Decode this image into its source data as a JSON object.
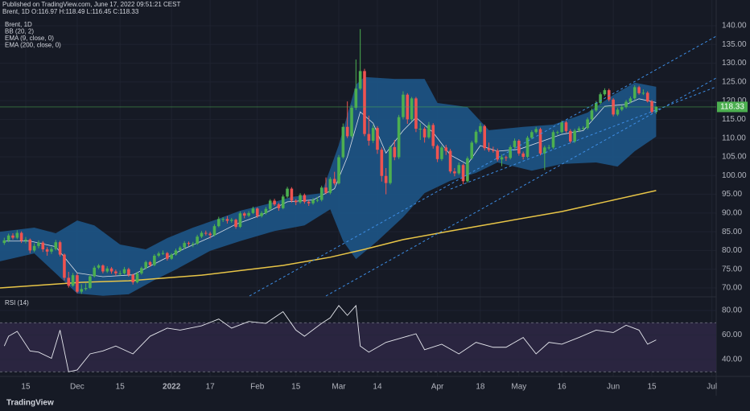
{
  "header": {
    "published": "Published on TradingView.com, June 17, 2022 09:51:21 CEST",
    "symbol_line": "Brent, 1D  O:116.97 H:118.49 L:116.45 C:118.33",
    "logo": "TradingView"
  },
  "chart_data": {
    "type": "candlestick",
    "legend": [
      "Brent, 1D",
      "BB (20, 2)",
      "EMA (9, close, 0)",
      "EMA (200, close, 0)"
    ],
    "up_color": "#4caf50",
    "down_color": "#ef5350",
    "grid": true,
    "ylim": [
      67.85,
      142.15
    ],
    "yticks": [
      {
        "value": 70,
        "label": "70.00"
      },
      {
        "value": 75,
        "label": "75.00"
      },
      {
        "value": 80,
        "label": "80.00"
      },
      {
        "value": 85,
        "label": "85.00"
      },
      {
        "value": 90,
        "label": "90.00"
      },
      {
        "value": 95,
        "label": "95.00"
      },
      {
        "value": 100,
        "label": "100.00"
      },
      {
        "value": 105,
        "label": "105.00"
      },
      {
        "value": 110,
        "label": "110.00"
      },
      {
        "value": 115,
        "label": "115.00"
      },
      {
        "value": 120,
        "label": "120.00"
      },
      {
        "value": 125,
        "label": "125.00"
      },
      {
        "value": 130,
        "label": "130.00"
      },
      {
        "value": 135,
        "label": "135.00"
      },
      {
        "value": 140,
        "label": "140.00"
      }
    ],
    "xlim": [
      -1,
      166
    ],
    "xticks": [
      {
        "value": 5,
        "label": "15"
      },
      {
        "value": 17,
        "label": "Dec"
      },
      {
        "value": 27,
        "label": "15"
      },
      {
        "value": 39,
        "label": "2022"
      },
      {
        "value": 48,
        "label": "17"
      },
      {
        "value": 59,
        "label": "Feb"
      },
      {
        "value": 68,
        "label": "15"
      },
      {
        "value": 78,
        "label": "Mar"
      },
      {
        "value": 87,
        "label": "14"
      },
      {
        "value": 101,
        "label": "Apr"
      },
      {
        "value": 111,
        "label": "18"
      },
      {
        "value": 120,
        "label": "May"
      },
      {
        "value": 130,
        "label": "16"
      },
      {
        "value": 142,
        "label": "Jun"
      },
      {
        "value": 151,
        "label": "15"
      },
      {
        "value": 165,
        "label": "Jul"
      }
    ],
    "candles": [
      [
        82.0,
        83.4,
        81.5,
        82.7
      ],
      [
        82.7,
        84.5,
        82.2,
        84.0
      ],
      [
        84.0,
        84.6,
        82.9,
        83.4
      ],
      [
        83.4,
        85.4,
        83.0,
        84.7
      ],
      [
        84.7,
        85.1,
        82.0,
        82.6
      ],
      [
        82.6,
        83.6,
        81.9,
        82.9
      ],
      [
        82.9,
        83.2,
        79.3,
        80.0
      ],
      [
        80.0,
        81.9,
        79.6,
        81.2
      ],
      [
        81.2,
        82.7,
        80.6,
        82.1
      ],
      [
        82.1,
        82.5,
        79.6,
        80.3
      ],
      [
        80.3,
        80.9,
        78.6,
        79.7
      ],
      [
        79.7,
        81.0,
        79.1,
        80.4
      ],
      [
        80.4,
        82.8,
        80.0,
        82.2
      ],
      [
        82.2,
        82.6,
        78.4,
        78.9
      ],
      [
        78.9,
        79.2,
        72.0,
        72.7
      ],
      [
        72.7,
        74.3,
        70.1,
        70.6
      ],
      [
        70.6,
        74.0,
        70.3,
        73.4
      ],
      [
        73.4,
        73.9,
        68.6,
        69.0
      ],
      [
        69.0,
        71.0,
        68.4,
        69.7
      ],
      [
        69.7,
        71.2,
        69.3,
        70.0
      ],
      [
        70.0,
        73.6,
        69.7,
        73.1
      ],
      [
        73.1,
        75.9,
        72.8,
        75.4
      ],
      [
        75.4,
        76.4,
        75.0,
        76.0
      ],
      [
        76.0,
        76.3,
        73.9,
        74.4
      ],
      [
        74.4,
        75.8,
        74.0,
        75.2
      ],
      [
        75.2,
        75.6,
        73.8,
        74.4
      ],
      [
        74.4,
        74.9,
        73.2,
        73.9
      ],
      [
        73.9,
        74.6,
        73.3,
        73.9
      ],
      [
        73.9,
        75.6,
        73.6,
        75.0
      ],
      [
        75.0,
        75.4,
        73.0,
        73.5
      ],
      [
        73.5,
        73.8,
        70.9,
        71.5
      ],
      [
        71.5,
        74.3,
        71.2,
        73.9
      ],
      [
        73.9,
        75.7,
        73.5,
        75.3
      ],
      [
        75.3,
        77.3,
        75.0,
        76.9
      ],
      [
        76.9,
        77.2,
        75.6,
        76.1
      ],
      [
        76.1,
        79.0,
        75.8,
        78.6
      ],
      [
        78.6,
        79.7,
        78.2,
        79.2
      ],
      [
        79.2,
        80.0,
        78.8,
        79.3
      ],
      [
        79.3,
        79.6,
        77.3,
        77.8
      ],
      [
        77.8,
        79.3,
        77.5,
        78.9
      ],
      [
        78.9,
        80.5,
        78.6,
        80.0
      ],
      [
        80.0,
        81.2,
        79.6,
        80.8
      ],
      [
        80.8,
        82.5,
        80.4,
        82.0
      ],
      [
        82.0,
        82.4,
        81.2,
        81.8
      ],
      [
        81.8,
        82.3,
        80.9,
        81.8
      ],
      [
        81.8,
        84.2,
        81.5,
        83.7
      ],
      [
        83.7,
        85.2,
        83.3,
        84.7
      ],
      [
        84.7,
        85.3,
        84.0,
        84.5
      ],
      [
        84.5,
        85.0,
        83.2,
        84.1
      ],
      [
        84.1,
        87.0,
        83.8,
        86.5
      ],
      [
        86.5,
        89.0,
        86.2,
        88.4
      ],
      [
        88.4,
        88.9,
        87.6,
        88.4
      ],
      [
        88.4,
        89.2,
        87.2,
        87.9
      ],
      [
        87.9,
        88.7,
        87.4,
        88.2
      ],
      [
        88.2,
        88.5,
        85.8,
        86.3
      ],
      [
        86.3,
        90.4,
        86.0,
        89.9
      ],
      [
        89.9,
        90.3,
        88.6,
        89.3
      ],
      [
        89.3,
        90.5,
        88.9,
        90.0
      ],
      [
        90.0,
        91.7,
        89.7,
        91.2
      ],
      [
        91.2,
        91.5,
        88.7,
        89.2
      ],
      [
        89.2,
        90.5,
        88.8,
        90.0
      ],
      [
        90.0,
        91.6,
        89.6,
        91.1
      ],
      [
        91.1,
        93.7,
        90.7,
        93.3
      ],
      [
        93.3,
        93.8,
        91.9,
        92.3
      ],
      [
        92.3,
        92.7,
        90.6,
        91.3
      ],
      [
        91.3,
        94.9,
        91.0,
        94.4
      ],
      [
        94.4,
        97.0,
        94.0,
        96.5
      ],
      [
        96.5,
        96.9,
        92.8,
        93.3
      ],
      [
        93.3,
        93.7,
        92.1,
        92.9
      ],
      [
        92.9,
        95.3,
        92.5,
        94.8
      ],
      [
        94.8,
        95.2,
        92.5,
        93.0
      ],
      [
        93.0,
        93.4,
        91.9,
        92.6
      ],
      [
        92.6,
        94.0,
        92.2,
        93.5
      ],
      [
        93.5,
        94.3,
        92.9,
        93.5
      ],
      [
        93.5,
        97.3,
        93.1,
        96.8
      ],
      [
        96.8,
        99.5,
        95.0,
        95.4
      ],
      [
        95.4,
        99.6,
        95.0,
        99.1
      ],
      [
        99.1,
        101.0,
        97.4,
        97.9
      ],
      [
        97.9,
        105.5,
        97.6,
        104.9
      ],
      [
        104.9,
        113.9,
        104.5,
        113.0
      ],
      [
        113.0,
        119.8,
        110.0,
        110.5
      ],
      [
        110.5,
        118.8,
        110.0,
        118.1
      ],
      [
        118.1,
        131.0,
        117.5,
        123.2
      ],
      [
        123.2,
        139.1,
        122.8,
        127.9
      ],
      [
        127.9,
        128.5,
        110.5,
        111.1
      ],
      [
        111.1,
        116.0,
        108.0,
        109.3
      ],
      [
        109.3,
        113.5,
        108.7,
        112.7
      ],
      [
        112.7,
        113.2,
        105.8,
        106.9
      ],
      [
        106.9,
        107.5,
        98.4,
        99.9
      ],
      [
        99.9,
        102.0,
        95.0,
        98.0
      ],
      [
        98.0,
        108.0,
        97.6,
        107.6
      ],
      [
        107.6,
        109.5,
        104.1,
        104.9
      ],
      [
        104.9,
        116.2,
        104.4,
        115.6
      ],
      [
        115.6,
        122.5,
        115.0,
        121.6
      ],
      [
        121.6,
        122.0,
        113.8,
        115.0
      ],
      [
        115.0,
        121.0,
        114.5,
        120.6
      ],
      [
        120.6,
        121.0,
        111.6,
        112.5
      ],
      [
        112.5,
        114.0,
        109.5,
        112.5
      ],
      [
        112.5,
        113.0,
        108.8,
        110.2
      ],
      [
        110.2,
        114.3,
        109.8,
        113.5
      ],
      [
        113.5,
        114.0,
        107.2,
        107.9
      ],
      [
        107.9,
        108.3,
        103.6,
        104.4
      ],
      [
        104.4,
        108.0,
        103.9,
        107.5
      ],
      [
        107.5,
        108.2,
        105.5,
        106.6
      ],
      [
        106.6,
        107.1,
        100.6,
        101.1
      ],
      [
        101.1,
        102.0,
        99.8,
        100.6
      ],
      [
        100.6,
        103.5,
        100.2,
        102.8
      ],
      [
        102.8,
        103.2,
        97.7,
        98.5
      ],
      [
        98.5,
        105.1,
        98.1,
        104.6
      ],
      [
        104.6,
        109.3,
        104.2,
        108.8
      ],
      [
        108.8,
        112.2,
        108.4,
        111.7
      ],
      [
        111.7,
        114.0,
        111.2,
        113.2
      ],
      [
        113.2,
        113.6,
        106.7,
        107.3
      ],
      [
        107.3,
        108.8,
        106.3,
        106.8
      ],
      [
        106.8,
        107.7,
        106.1,
        106.7
      ],
      [
        106.7,
        107.2,
        103.8,
        104.3
      ],
      [
        104.3,
        105.6,
        102.5,
        104.9
      ],
      [
        104.9,
        105.3,
        103.9,
        104.7
      ],
      [
        104.7,
        108.1,
        104.3,
        107.6
      ],
      [
        107.6,
        109.9,
        107.2,
        109.3
      ],
      [
        109.3,
        109.7,
        105.3,
        105.9
      ],
      [
        105.9,
        106.4,
        104.3,
        105.0
      ],
      [
        105.0,
        110.6,
        104.6,
        110.1
      ],
      [
        110.1,
        112.1,
        109.7,
        111.6
      ],
      [
        111.6,
        113.0,
        111.2,
        112.4
      ],
      [
        112.4,
        112.8,
        105.4,
        105.9
      ],
      [
        105.9,
        108.0,
        101.5,
        107.5
      ],
      [
        107.5,
        108.2,
        106.9,
        107.5
      ],
      [
        107.5,
        112.1,
        107.1,
        111.6
      ],
      [
        111.6,
        112.0,
        110.9,
        111.6
      ],
      [
        111.6,
        114.7,
        111.2,
        114.2
      ],
      [
        114.2,
        114.6,
        111.4,
        111.9
      ],
      [
        111.9,
        112.4,
        108.6,
        109.1
      ],
      [
        109.1,
        112.5,
        108.7,
        112.0
      ],
      [
        112.0,
        113.1,
        111.6,
        112.6
      ],
      [
        112.6,
        113.2,
        112.1,
        112.7
      ],
      [
        112.7,
        115.5,
        112.3,
        115.0
      ],
      [
        115.0,
        117.9,
        114.6,
        117.4
      ],
      [
        117.4,
        119.9,
        117.0,
        119.4
      ],
      [
        119.4,
        122.2,
        119.0,
        121.7
      ],
      [
        121.7,
        123.3,
        121.3,
        122.8
      ],
      [
        122.8,
        123.2,
        119.8,
        120.3
      ],
      [
        120.3,
        120.7,
        115.8,
        116.3
      ],
      [
        116.3,
        118.1,
        115.9,
        117.6
      ],
      [
        117.6,
        118.8,
        117.2,
        118.3
      ],
      [
        118.3,
        120.2,
        117.9,
        119.7
      ],
      [
        119.7,
        121.1,
        119.3,
        120.6
      ],
      [
        120.6,
        124.1,
        120.2,
        123.6
      ],
      [
        123.6,
        124.0,
        121.6,
        122.0
      ],
      [
        122.0,
        123.0,
        121.5,
        122.1
      ],
      [
        122.1,
        122.5,
        119.5,
        119.8
      ],
      [
        119.8,
        120.2,
        116.5,
        117.0
      ],
      [
        116.97,
        118.49,
        116.45,
        118.33
      ]
    ],
    "bb_upper": {
      "x": [
        -1,
        7,
        12,
        17,
        21,
        27,
        33,
        38,
        44,
        50,
        55,
        61,
        67,
        74,
        78,
        82,
        84,
        91,
        98,
        101,
        108,
        113,
        121,
        128,
        136,
        142,
        147,
        152
      ],
      "values": [
        85.0,
        86.1,
        84.6,
        88.0,
        86.7,
        81.6,
        80.3,
        83.3,
        86.1,
        88.5,
        90.6,
        92.3,
        94.3,
        95.3,
        108.2,
        124.3,
        126.3,
        125.8,
        125.8,
        119.4,
        118.3,
        112.1,
        113.0,
        113.6,
        116.8,
        121.5,
        124.8,
        123.7
      ]
    },
    "bb_lower": {
      "x": [
        -1,
        7,
        12,
        17,
        23,
        29,
        35,
        40,
        48,
        55,
        63,
        70,
        76,
        79,
        82,
        87,
        93,
        98,
        104,
        110,
        115,
        123,
        130,
        138,
        143,
        147,
        152
      ],
      "values": [
        77.1,
        79.2,
        73.9,
        68.5,
        67.9,
        68.3,
        72.1,
        74.9,
        79.9,
        82.5,
        85.2,
        86.7,
        91.0,
        82.5,
        77.7,
        82.5,
        88.9,
        95.3,
        98.6,
        100.7,
        103.5,
        101.3,
        103.1,
        103.5,
        102.4,
        106.5,
        110.4
      ]
    },
    "bb_color": "#1d5587",
    "ema9": {
      "color": "#d8dde6",
      "x": [
        0,
        6,
        12,
        17,
        23,
        30,
        36,
        42,
        48,
        54,
        60,
        66,
        72,
        77,
        80,
        83,
        86,
        89,
        93,
        96,
        100,
        104,
        108,
        111,
        115,
        120,
        125,
        130,
        135,
        140,
        145,
        148,
        152
      ],
      "values": [
        82.5,
        82.5,
        81.0,
        74.0,
        73.0,
        73.5,
        77.0,
        80.5,
        83.5,
        87.0,
        89.5,
        93.0,
        93.5,
        96.5,
        105.0,
        117.0,
        114.0,
        106.0,
        112.0,
        115.5,
        111.5,
        105.5,
        103.0,
        108.0,
        106.5,
        107.0,
        109.0,
        111.0,
        112.0,
        118.5,
        119.0,
        120.5,
        119.5
      ]
    },
    "ema200": {
      "color": "#e8c547",
      "x": [
        -1,
        18,
        29,
        46,
        65,
        76,
        84,
        93,
        104,
        115,
        130,
        141,
        152
      ],
      "values": [
        70.0,
        71.5,
        71.9,
        73.4,
        76.0,
        78.2,
        80.3,
        82.9,
        85.2,
        87.4,
        90.4,
        93.2,
        96.0
      ]
    },
    "rsi": {
      "title": "RSI (14)",
      "color": "#e6e8ee",
      "band_color": "#2a2540",
      "ylim": [
        28.2,
        90.5
      ],
      "band": [
        30,
        70
      ],
      "yticks": [
        {
          "value": 80,
          "label": "80.00"
        },
        {
          "value": 60,
          "label": "60.00"
        },
        {
          "value": 40,
          "label": "40.00"
        }
      ],
      "x": [
        0,
        1,
        3,
        6,
        8,
        11,
        13,
        15,
        17,
        20,
        23,
        26,
        30,
        34,
        38,
        41,
        46,
        50,
        53,
        57,
        61,
        65,
        68,
        70,
        74,
        76,
        78,
        80,
        82,
        83,
        85,
        89,
        93,
        96,
        98,
        102,
        106,
        110,
        114,
        117,
        121,
        124,
        127,
        130,
        134,
        138,
        142,
        145,
        148,
        150,
        152
      ],
      "values": [
        51,
        59,
        63,
        47,
        46,
        41,
        64,
        30,
        31.5,
        44.6,
        47,
        51,
        44.6,
        59,
        65.6,
        64,
        67.5,
        73,
        65.6,
        71,
        69.5,
        79,
        64,
        59,
        69.5,
        74,
        84,
        76,
        84,
        51,
        46,
        54,
        58,
        61,
        48,
        52.5,
        44.6,
        54,
        50,
        50,
        58,
        44.6,
        54,
        52.5,
        58,
        64,
        62,
        68,
        64,
        52.5,
        56
      ]
    }
  }
}
